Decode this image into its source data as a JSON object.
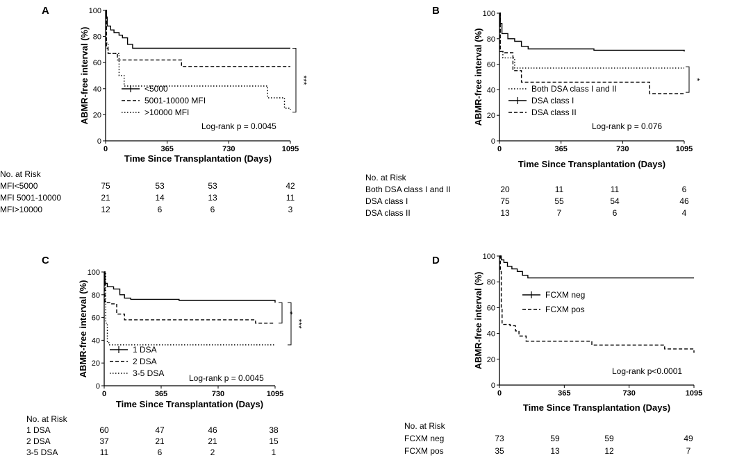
{
  "figure": {
    "panel_labels": [
      "A",
      "B",
      "C",
      "D"
    ]
  },
  "chart_data": [
    {
      "panel": "A",
      "type": "line",
      "subtype": "kaplan-meier step",
      "xlabel": "Time Since Transplantation (Days)",
      "ylabel": "ABMR-free interval (%)",
      "xlim": [
        0,
        1095
      ],
      "ylim": [
        0,
        100
      ],
      "xticks": [
        0,
        365,
        730,
        1095
      ],
      "yticks": [
        0,
        20,
        40,
        60,
        80,
        100
      ],
      "series": [
        {
          "name": "<5000",
          "style": "solid",
          "points": [
            [
              0,
              100
            ],
            [
              5,
              95
            ],
            [
              10,
              88
            ],
            [
              30,
              85
            ],
            [
              50,
              83
            ],
            [
              80,
              81
            ],
            [
              100,
              79
            ],
            [
              130,
              74
            ],
            [
              160,
              71
            ],
            [
              1095,
              71
            ]
          ]
        },
        {
          "name": "5001-10000 MFI",
          "style": "dashed",
          "points": [
            [
              0,
              100
            ],
            [
              5,
              71
            ],
            [
              15,
              67
            ],
            [
              70,
              62
            ],
            [
              150,
              62
            ],
            [
              420,
              62
            ],
            [
              450,
              57
            ],
            [
              1095,
              57
            ]
          ]
        },
        {
          "name": ">10000 MFI",
          "style": "dotted",
          "points": [
            [
              0,
              100
            ],
            [
              5,
              75
            ],
            [
              15,
              67
            ],
            [
              80,
              50
            ],
            [
              110,
              42
            ],
            [
              950,
              42
            ],
            [
              960,
              33
            ],
            [
              1060,
              25
            ],
            [
              1095,
              24
            ]
          ]
        }
      ],
      "legend": [
        "<5000",
        "5001-10000 MFI",
        ">10000 MFI"
      ],
      "annotation": "Log-rank p = 0.0045",
      "significance": [
        {
          "label": "***",
          "from": 71,
          "to": 22
        }
      ],
      "risk_table": {
        "title": "No. at Risk",
        "rows": [
          {
            "label": "MFI<5000",
            "values": [
              75,
              53,
              53,
              42
            ]
          },
          {
            "label": "MFI 5001-10000",
            "values": [
              21,
              14,
              13,
              11
            ]
          },
          {
            "label": "MFI>10000",
            "values": [
              12,
              6,
              6,
              3
            ]
          }
        ]
      }
    },
    {
      "panel": "B",
      "type": "line",
      "subtype": "kaplan-meier step",
      "xlabel": "Time Since Transplantation (Days)",
      "ylabel": "ABMR-free interval (%)",
      "xlim": [
        0,
        1095
      ],
      "ylim": [
        0,
        100
      ],
      "xticks": [
        0,
        365,
        730,
        1095
      ],
      "yticks": [
        0,
        20,
        40,
        60,
        80,
        100
      ],
      "series": [
        {
          "name": "Both DSA class I and II",
          "style": "dotted",
          "points": [
            [
              0,
              100
            ],
            [
              5,
              70
            ],
            [
              20,
              65
            ],
            [
              90,
              57
            ],
            [
              1095,
              57
            ]
          ]
        },
        {
          "name": "DSA class I",
          "style": "solid",
          "points": [
            [
              0,
              100
            ],
            [
              5,
              92
            ],
            [
              15,
              84
            ],
            [
              50,
              80
            ],
            [
              90,
              78
            ],
            [
              130,
              74
            ],
            [
              170,
              72
            ],
            [
              500,
              72
            ],
            [
              560,
              71
            ],
            [
              1095,
              70
            ]
          ]
        },
        {
          "name": "DSA class II",
          "style": "dashed",
          "points": [
            [
              0,
              100
            ],
            [
              5,
              70
            ],
            [
              30,
              69
            ],
            [
              80,
              55
            ],
            [
              130,
              46
            ],
            [
              860,
              46
            ],
            [
              890,
              37
            ],
            [
              1095,
              37
            ]
          ]
        }
      ],
      "legend": [
        "Both DSA class I and II",
        "DSA class I",
        "DSA class II"
      ],
      "annotation": "Log-rank p = 0.076",
      "significance": [
        {
          "label": "*",
          "from": 58,
          "to": 38
        }
      ],
      "risk_table": {
        "title": "No. at Risk",
        "rows": [
          {
            "label": "Both DSA class I and II",
            "values": [
              20,
              11,
              11,
              6
            ]
          },
          {
            "label": "DSA class I",
            "values": [
              75,
              55,
              54,
              46
            ]
          },
          {
            "label": "DSA class II",
            "values": [
              13,
              7,
              6,
              4
            ]
          }
        ]
      }
    },
    {
      "panel": "C",
      "type": "line",
      "subtype": "kaplan-meier step",
      "xlabel": "Time Since Transplantation (Days)",
      "ylabel": "ABMR-free interval (%)",
      "xlim": [
        0,
        1095
      ],
      "ylim": [
        0,
        100
      ],
      "xticks": [
        0,
        365,
        730,
        1095
      ],
      "yticks": [
        0,
        20,
        40,
        60,
        80,
        100
      ],
      "series": [
        {
          "name": "1 DSA",
          "style": "solid",
          "points": [
            [
              0,
              100
            ],
            [
              5,
              90
            ],
            [
              20,
              87
            ],
            [
              60,
              85
            ],
            [
              100,
              80
            ],
            [
              130,
              77
            ],
            [
              170,
              76
            ],
            [
              450,
              76
            ],
            [
              480,
              75
            ],
            [
              1080,
              75
            ],
            [
              1095,
              73
            ]
          ]
        },
        {
          "name": "2 DSA",
          "style": "dashed",
          "points": [
            [
              0,
              100
            ],
            [
              5,
              73
            ],
            [
              40,
              72
            ],
            [
              80,
              63
            ],
            [
              130,
              58
            ],
            [
              950,
              58
            ],
            [
              970,
              55
            ],
            [
              1095,
              55
            ]
          ]
        },
        {
          "name": "3-5 DSA",
          "style": "dotted",
          "points": [
            [
              0,
              100
            ],
            [
              10,
              55
            ],
            [
              20,
              38
            ],
            [
              30,
              36
            ],
            [
              1095,
              36
            ]
          ]
        }
      ],
      "legend": [
        "1 DSA",
        "2 DSA",
        "3-5 DSA"
      ],
      "annotation": "Log-rank p = 0.0045",
      "significance": [
        {
          "label": "*",
          "from": 73,
          "to": 55
        },
        {
          "label": "***",
          "from": 73,
          "to": 36
        }
      ],
      "risk_table": {
        "title": "No. at Risk",
        "rows": [
          {
            "label": "1 DSA",
            "values": [
              60,
              47,
              46,
              38
            ]
          },
          {
            "label": "2 DSA",
            "values": [
              37,
              21,
              21,
              15
            ]
          },
          {
            "label": "3-5 DSA",
            "values": [
              11,
              6,
              2,
              1
            ]
          }
        ]
      }
    },
    {
      "panel": "D",
      "type": "line",
      "subtype": "kaplan-meier step",
      "xlabel": "Time Since Transplantation (Days)",
      "ylabel": "ABMR-free interval (%)",
      "xlim": [
        0,
        1095
      ],
      "ylim": [
        0,
        100
      ],
      "xticks": [
        0,
        365,
        730,
        1095
      ],
      "yticks": [
        0,
        20,
        40,
        60,
        80,
        100
      ],
      "series": [
        {
          "name": "FCXM neg",
          "style": "solid",
          "points": [
            [
              0,
              100
            ],
            [
              10,
              97
            ],
            [
              25,
              95
            ],
            [
              45,
              92
            ],
            [
              70,
              90
            ],
            [
              100,
              88
            ],
            [
              130,
              85
            ],
            [
              160,
              83
            ],
            [
              1095,
              83
            ]
          ]
        },
        {
          "name": "FCXM pos",
          "style": "dashed",
          "points": [
            [
              0,
              100
            ],
            [
              5,
              88
            ],
            [
              10,
              60
            ],
            [
              15,
              47
            ],
            [
              60,
              46
            ],
            [
              90,
              42
            ],
            [
              110,
              38
            ],
            [
              150,
              34
            ],
            [
              500,
              34
            ],
            [
              520,
              31
            ],
            [
              900,
              31
            ],
            [
              930,
              28
            ],
            [
              1090,
              28
            ],
            [
              1095,
              25
            ]
          ]
        }
      ],
      "legend": [
        "FCXM neg",
        "FCXM pos"
      ],
      "annotation": "Log-rank p<0.0001",
      "significance": [],
      "risk_table": {
        "title": "No. at Risk",
        "rows": [
          {
            "label": "FCXM neg",
            "values": [
              73,
              59,
              59,
              49
            ]
          },
          {
            "label": "FCXM pos",
            "values": [
              35,
              13,
              12,
              7
            ]
          }
        ]
      }
    }
  ]
}
